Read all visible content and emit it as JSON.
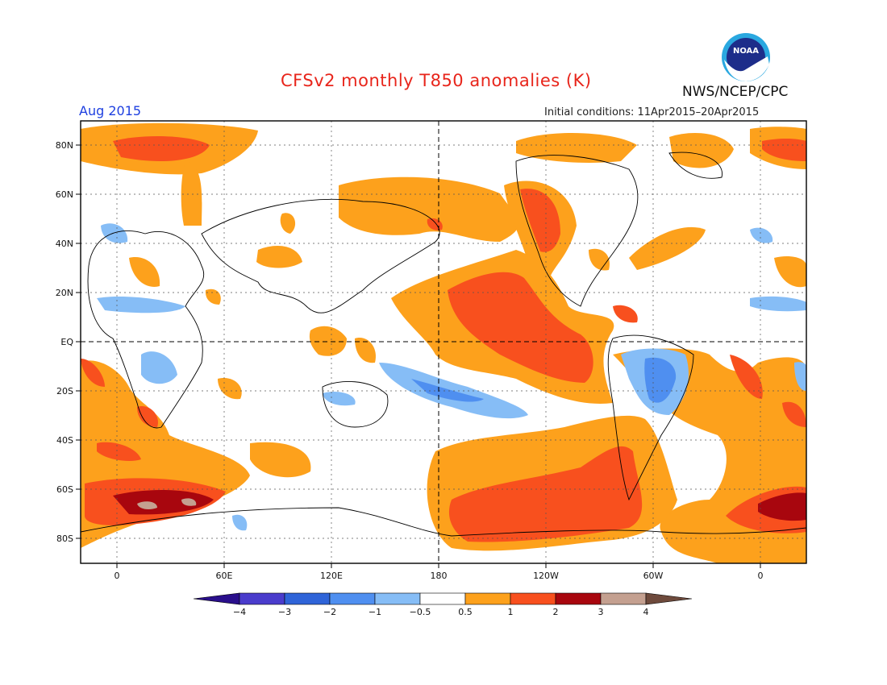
{
  "header": {
    "title": "CFSv2 monthly T850 anomalies (K)",
    "month": "Aug 2015",
    "initial_conditions": "Initial conditions: 11Apr2015–20Apr2015",
    "org": "NWS/NCEP/CPC",
    "logo_text": "NOAA"
  },
  "map": {
    "lat_labels": [
      "80N",
      "60N",
      "40N",
      "20N",
      "EQ",
      "20S",
      "40S",
      "60S",
      "80S"
    ],
    "lon_labels": [
      "0",
      "60E",
      "120E",
      "180",
      "120W",
      "60W",
      "0"
    ]
  },
  "colorbar": {
    "labels": [
      "−4",
      "−3",
      "−2",
      "−1",
      "−0.5",
      "0.5",
      "1",
      "2",
      "3",
      "4"
    ],
    "colors": [
      "#2a0f8c",
      "#4a3ccc",
      "#2f64d8",
      "#4f8ff0",
      "#86bdf6",
      "#ffffff",
      "#fda11c",
      "#f8501e",
      "#a8060e",
      "#c4a090",
      "#6e4a3c"
    ]
  },
  "colors": {
    "pos1": "#fda11c",
    "pos2": "#f8501e",
    "pos3": "#a8060e",
    "pos4": "#c4a090",
    "neg1": "#86bdf6",
    "neg2": "#4f8ff0"
  }
}
